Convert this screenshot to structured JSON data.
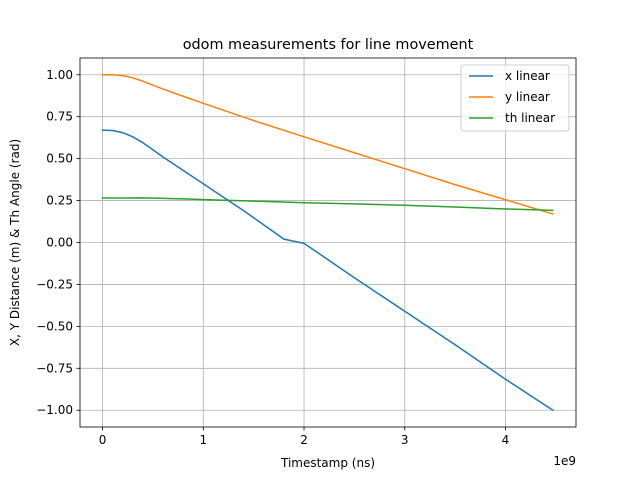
{
  "chart_data": {
    "type": "line",
    "title": "odom measurements for line movement",
    "xlabel": "Timestamp (ns)",
    "ylabel": "X, Y Distance (m) & Th Angle (rad)",
    "x_offset_label": "1e9",
    "xlim": [
      -0.224,
      4.7
    ],
    "ylim": [
      -1.1,
      1.1
    ],
    "x_ticks": [
      0,
      1,
      2,
      3,
      4
    ],
    "x_tick_labels": [
      "0",
      "1",
      "2",
      "3",
      "4"
    ],
    "y_ticks": [
      -1.0,
      -0.75,
      -0.5,
      -0.25,
      0.0,
      0.25,
      0.5,
      0.75,
      1.0
    ],
    "y_tick_labels": [
      "−1.00",
      "−0.75",
      "−0.50",
      "−0.25",
      "0.00",
      "0.25",
      "0.50",
      "0.75",
      "1.00"
    ],
    "grid": true,
    "legend_position": "top-right",
    "series": [
      {
        "name": "x linear",
        "color": "#1f77b4",
        "x": [
          0,
          0.1,
          0.2,
          0.3,
          0.4,
          0.5,
          0.6,
          0.8,
          1.0,
          1.2,
          1.4,
          1.6,
          1.8,
          2.0,
          2.5,
          3.0,
          3.5,
          4.0,
          4.47
        ],
        "y": [
          0.67,
          0.668,
          0.655,
          0.63,
          0.595,
          0.553,
          0.51,
          0.43,
          0.35,
          0.27,
          0.19,
          0.105,
          0.02,
          -0.005,
          -0.21,
          -0.41,
          -0.61,
          -0.815,
          -1.0
        ]
      },
      {
        "name": "y linear",
        "color": "#ff7f0e",
        "x": [
          0,
          0.1,
          0.2,
          0.3,
          0.4,
          0.5,
          0.6,
          0.8,
          1.0,
          1.5,
          2.0,
          2.5,
          3.0,
          3.5,
          4.0,
          4.47
        ],
        "y": [
          1.0,
          1.0,
          0.995,
          0.982,
          0.962,
          0.938,
          0.915,
          0.872,
          0.83,
          0.727,
          0.63,
          0.535,
          0.44,
          0.345,
          0.255,
          0.17
        ]
      },
      {
        "name": "th linear",
        "color": "#2ca02c",
        "x": [
          0,
          0.4,
          0.8,
          1.2,
          1.6,
          2.0,
          2.5,
          3.0,
          3.5,
          4.0,
          4.47
        ],
        "y": [
          0.265,
          0.266,
          0.26,
          0.252,
          0.245,
          0.237,
          0.23,
          0.222,
          0.212,
          0.2,
          0.192
        ]
      }
    ]
  }
}
